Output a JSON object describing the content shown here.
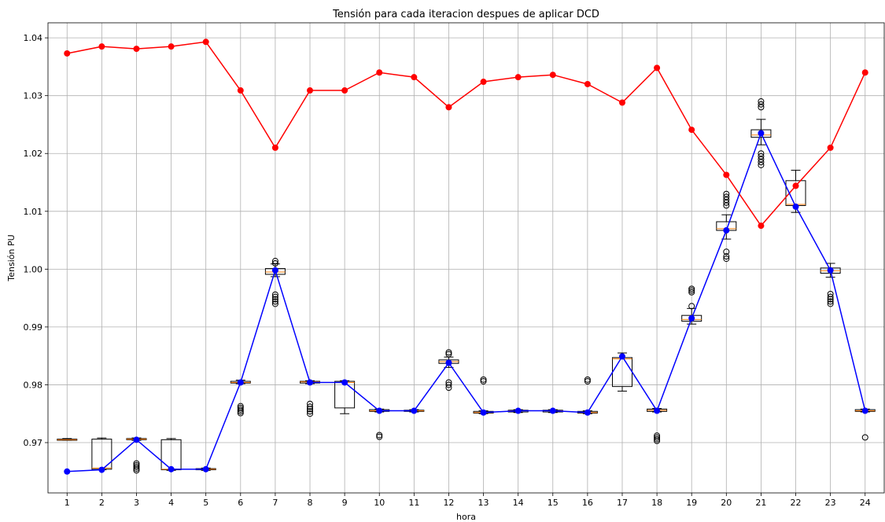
{
  "chart_data": {
    "type": "line",
    "title": "Tensión para cada iteracion despues de aplicar DCD",
    "xlabel": "hora",
    "ylabel": "Tensión PU",
    "categories": [
      "1",
      "2",
      "3",
      "4",
      "5",
      "6",
      "7",
      "8",
      "9",
      "10",
      "11",
      "12",
      "13",
      "14",
      "15",
      "16",
      "17",
      "18",
      "19",
      "20",
      "21",
      "22",
      "23",
      "24"
    ],
    "yticks": [
      "0.97",
      "0.98",
      "0.99",
      "1.00",
      "1.01",
      "1.02",
      "1.03",
      "1.04"
    ],
    "ylim": [
      0.9613,
      1.0426
    ],
    "grid": true,
    "colors": {
      "red": "#ff0000",
      "blue": "#0000ff",
      "median": "#ff7f0e"
    },
    "series": [
      {
        "color": "red",
        "values": [
          1.0373,
          1.0385,
          1.0381,
          1.0385,
          1.0393,
          1.0309,
          1.021,
          1.0309,
          1.0309,
          1.034,
          1.0332,
          1.028,
          1.0324,
          1.0332,
          1.0336,
          1.032,
          1.0288,
          1.0348,
          1.0241,
          1.0163,
          1.0075,
          1.0144,
          1.021,
          1.034
        ]
      },
      {
        "color": "blue",
        "values": [
          0.965,
          0.9653,
          0.9705,
          0.9654,
          0.9654,
          0.9804,
          0.9998,
          0.9804,
          0.9804,
          0.9755,
          0.9755,
          0.9838,
          0.9752,
          0.9755,
          0.9755,
          0.9752,
          0.9849,
          0.9755,
          0.9915,
          1.0067,
          1.0235,
          1.0108,
          0.9998,
          0.9755
        ]
      }
    ],
    "boxplots": [
      {
        "whisker_low": 0.9704,
        "q1": 0.9704,
        "median": 0.9705,
        "q3": 0.9706,
        "whisker_high": 0.9707,
        "outliers": []
      },
      {
        "whisker_low": 0.9653,
        "q1": 0.9654,
        "median": 0.9656,
        "q3": 0.9706,
        "whisker_high": 0.9708,
        "outliers": []
      },
      {
        "whisker_low": 0.9704,
        "q1": 0.9705,
        "median": 0.9706,
        "q3": 0.9707,
        "whisker_high": 0.9708,
        "outliers": [
          0.9652,
          0.9655,
          0.9658,
          0.9661,
          0.9664
        ]
      },
      {
        "whisker_low": 0.9652,
        "q1": 0.9653,
        "median": 0.9654,
        "q3": 0.9705,
        "whisker_high": 0.9707,
        "outliers": []
      },
      {
        "whisker_low": 0.9652,
        "q1": 0.9653,
        "median": 0.9654,
        "q3": 0.9655,
        "whisker_high": 0.9656,
        "outliers": []
      },
      {
        "whisker_low": 0.9802,
        "q1": 0.9803,
        "median": 0.9804,
        "q3": 0.9806,
        "whisker_high": 0.9808,
        "outliers": [
          0.9751,
          0.9754,
          0.9757,
          0.976,
          0.9763
        ]
      },
      {
        "whisker_low": 0.9987,
        "q1": 0.9991,
        "median": 0.9995,
        "q3": 1.0001,
        "whisker_high": 1.0009,
        "outliers": [
          0.994,
          0.9944,
          0.9948,
          0.9952,
          0.9956,
          1.001,
          1.0014
        ]
      },
      {
        "whisker_low": 0.9802,
        "q1": 0.9803,
        "median": 0.9805,
        "q3": 0.9806,
        "whisker_high": 0.9807,
        "outliers": [
          0.975,
          0.9754,
          0.9758,
          0.9762,
          0.9767
        ]
      },
      {
        "whisker_low": 0.975,
        "q1": 0.976,
        "median": 0.9804,
        "q3": 0.9806,
        "whisker_high": 0.9807,
        "outliers": []
      },
      {
        "whisker_low": 0.9753,
        "q1": 0.9754,
        "median": 0.9755,
        "q3": 0.9757,
        "whisker_high": 0.9758,
        "outliers": [
          0.971,
          0.9713
        ]
      },
      {
        "whisker_low": 0.9753,
        "q1": 0.9754,
        "median": 0.9755,
        "q3": 0.9756,
        "whisker_high": 0.9757,
        "outliers": []
      },
      {
        "whisker_low": 0.983,
        "q1": 0.9837,
        "median": 0.984,
        "q3": 0.9843,
        "whisker_high": 0.9848,
        "outliers": [
          0.9795,
          0.98,
          0.9804,
          0.9853,
          0.9856
        ]
      },
      {
        "whisker_low": 0.975,
        "q1": 0.9751,
        "median": 0.9752,
        "q3": 0.9754,
        "whisker_high": 0.9755,
        "outliers": [
          0.9806,
          0.9809
        ]
      },
      {
        "whisker_low": 0.9752,
        "q1": 0.9753,
        "median": 0.9755,
        "q3": 0.9756,
        "whisker_high": 0.9757,
        "outliers": []
      },
      {
        "whisker_low": 0.9752,
        "q1": 0.9753,
        "median": 0.9755,
        "q3": 0.9756,
        "whisker_high": 0.9757,
        "outliers": []
      },
      {
        "whisker_low": 0.975,
        "q1": 0.9751,
        "median": 0.9752,
        "q3": 0.9754,
        "whisker_high": 0.9755,
        "outliers": [
          0.9806,
          0.9809
        ]
      },
      {
        "whisker_low": 0.9789,
        "q1": 0.9797,
        "median": 0.9845,
        "q3": 0.9847,
        "whisker_high": 0.9855,
        "outliers": []
      },
      {
        "whisker_low": 0.9753,
        "q1": 0.9754,
        "median": 0.9756,
        "q3": 0.9758,
        "whisker_high": 0.9759,
        "outliers": [
          0.9703,
          0.9706,
          0.9709,
          0.9712
        ]
      },
      {
        "whisker_low": 0.9905,
        "q1": 0.991,
        "median": 0.9913,
        "q3": 0.992,
        "whisker_high": 0.9932,
        "outliers": [
          0.9936,
          0.996,
          0.9963,
          0.9966
        ]
      },
      {
        "whisker_low": 1.0052,
        "q1": 1.0067,
        "median": 1.007,
        "q3": 1.0082,
        "whisker_high": 1.0094,
        "outliers": [
          1.0018,
          1.0022,
          1.003,
          1.011,
          1.0115,
          1.012,
          1.0125,
          1.013
        ]
      },
      {
        "whisker_low": 1.0215,
        "q1": 1.0228,
        "median": 1.0232,
        "q3": 1.0241,
        "whisker_high": 1.0259,
        "outliers": [
          1.018,
          1.0185,
          1.019,
          1.0195,
          1.02,
          1.028,
          1.0285,
          1.029
        ]
      },
      {
        "whisker_low": 1.0098,
        "q1": 1.011,
        "median": 1.0112,
        "q3": 1.0153,
        "whisker_high": 1.0171,
        "outliers": []
      },
      {
        "whisker_low": 0.9986,
        "q1": 0.9993,
        "median": 0.9997,
        "q3": 1.0002,
        "whisker_high": 1.001,
        "outliers": [
          0.994,
          0.9944,
          0.9948,
          0.9952,
          0.9957
        ]
      },
      {
        "whisker_low": 0.9753,
        "q1": 0.9754,
        "median": 0.9755,
        "q3": 0.9757,
        "whisker_high": 0.9758,
        "outliers": [
          0.9709
        ]
      }
    ]
  }
}
